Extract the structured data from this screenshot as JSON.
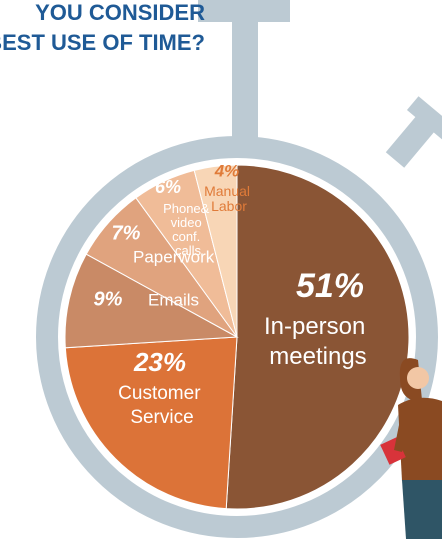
{
  "chart_data": {
    "type": "pie",
    "title_lines": [
      "YOU CONSIDER",
      "BEST USE OF TIME?"
    ],
    "categories": [
      "In-person meetings",
      "Customer Service",
      "Emails",
      "Paperwork",
      "Phone& video conf. calls",
      "Manual Labor"
    ],
    "values": [
      51,
      23,
      9,
      7,
      6,
      4
    ],
    "value_labels": [
      "51%",
      "23%",
      "9%",
      "7%",
      "6%",
      "4%"
    ],
    "colors": [
      "#8a5535",
      "#dc7338",
      "#c98a66",
      "#e0a37e",
      "#f0bc98",
      "#f8d6b6"
    ]
  }
}
